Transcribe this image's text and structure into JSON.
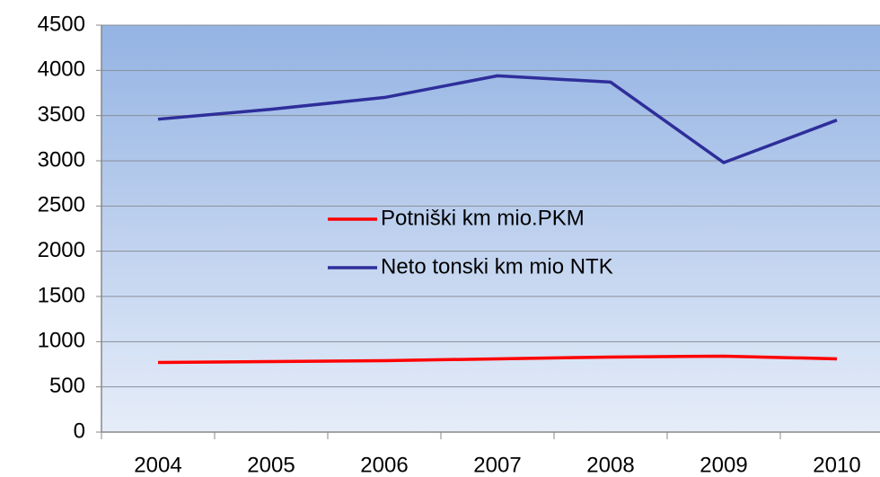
{
  "chart_data": {
    "type": "line",
    "categories": [
      "2004",
      "2005",
      "2006",
      "2007",
      "2008",
      "2009",
      "2010"
    ],
    "series": [
      {
        "name": "Potniški km mio.PKM",
        "color": "#ff0000",
        "values": [
          770,
          780,
          790,
          810,
          830,
          840,
          810
        ]
      },
      {
        "name": "Neto tonski km mio NTK",
        "color": "#2e2e9a",
        "values": [
          3460,
          3570,
          3700,
          3940,
          3870,
          2980,
          3450
        ]
      }
    ],
    "ylim": [
      0,
      4500
    ],
    "yticks": [
      0,
      500,
      1000,
      1500,
      2000,
      2500,
      3000,
      3500,
      4000,
      4500
    ],
    "grid": true,
    "legend": "center"
  }
}
